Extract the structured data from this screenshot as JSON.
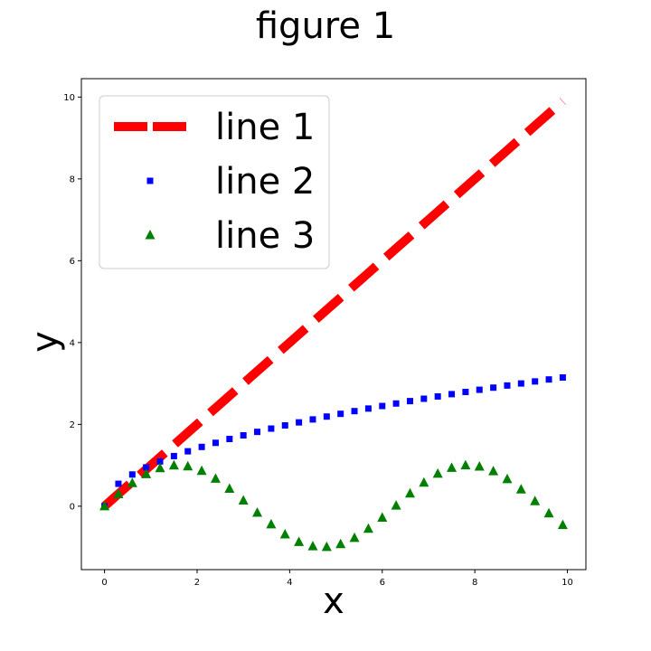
{
  "chart_data": {
    "type": "line",
    "title": "figure 1",
    "xlabel": "x",
    "ylabel": "y",
    "xlim": [
      -0.5,
      10.4
    ],
    "ylim": [
      -1.55,
      10.45
    ],
    "xticks": [
      "0",
      "2",
      "4",
      "6",
      "8",
      "10"
    ],
    "yticks": [
      "0",
      "2",
      "4",
      "6",
      "8",
      "10"
    ],
    "grid": false,
    "legend_position": "upper-left",
    "x": [
      0.0,
      0.3,
      0.6,
      0.9,
      1.2,
      1.5,
      1.8,
      2.1,
      2.4,
      2.7,
      3.0,
      3.3,
      3.6,
      3.9,
      4.2,
      4.5,
      4.8,
      5.1,
      5.4,
      5.7,
      6.0,
      6.3,
      6.6,
      6.9,
      7.2,
      7.5,
      7.8,
      8.1,
      8.4,
      8.7,
      9.0,
      9.3,
      9.6,
      9.9
    ],
    "series": [
      {
        "name": "line 1",
        "style": "dashed",
        "marker": "none",
        "color": "#ff0000",
        "values": [
          0.0,
          0.3,
          0.6,
          0.9,
          1.2,
          1.5,
          1.8,
          2.1,
          2.4,
          2.7,
          3.0,
          3.3,
          3.6,
          3.9,
          4.2,
          4.5,
          4.8,
          5.1,
          5.4,
          5.7,
          6.0,
          6.3,
          6.6,
          6.9,
          7.2,
          7.5,
          7.8,
          8.1,
          8.4,
          8.7,
          9.0,
          9.3,
          9.6,
          9.9
        ]
      },
      {
        "name": "line 2",
        "style": "none",
        "marker": "square",
        "color": "#0000ff",
        "values": [
          0.0,
          0.548,
          0.775,
          0.949,
          1.095,
          1.225,
          1.342,
          1.449,
          1.549,
          1.643,
          1.732,
          1.817,
          1.897,
          1.975,
          2.049,
          2.121,
          2.191,
          2.258,
          2.324,
          2.387,
          2.449,
          2.51,
          2.569,
          2.627,
          2.683,
          2.739,
          2.793,
          2.846,
          2.898,
          2.95,
          3.0,
          3.05,
          3.098,
          3.146
        ]
      },
      {
        "name": "line 3",
        "style": "none",
        "marker": "triangle",
        "color": "#008000",
        "values": [
          0.0,
          0.296,
          0.565,
          0.783,
          0.932,
          0.997,
          0.974,
          0.863,
          0.675,
          0.427,
          0.141,
          -0.158,
          -0.443,
          -0.688,
          -0.872,
          -0.978,
          -0.996,
          -0.926,
          -0.773,
          -0.551,
          -0.279,
          0.017,
          0.312,
          0.578,
          0.794,
          0.938,
          0.999,
          0.97,
          0.855,
          0.663,
          0.412,
          0.124,
          -0.174,
          -0.458
        ]
      }
    ]
  }
}
